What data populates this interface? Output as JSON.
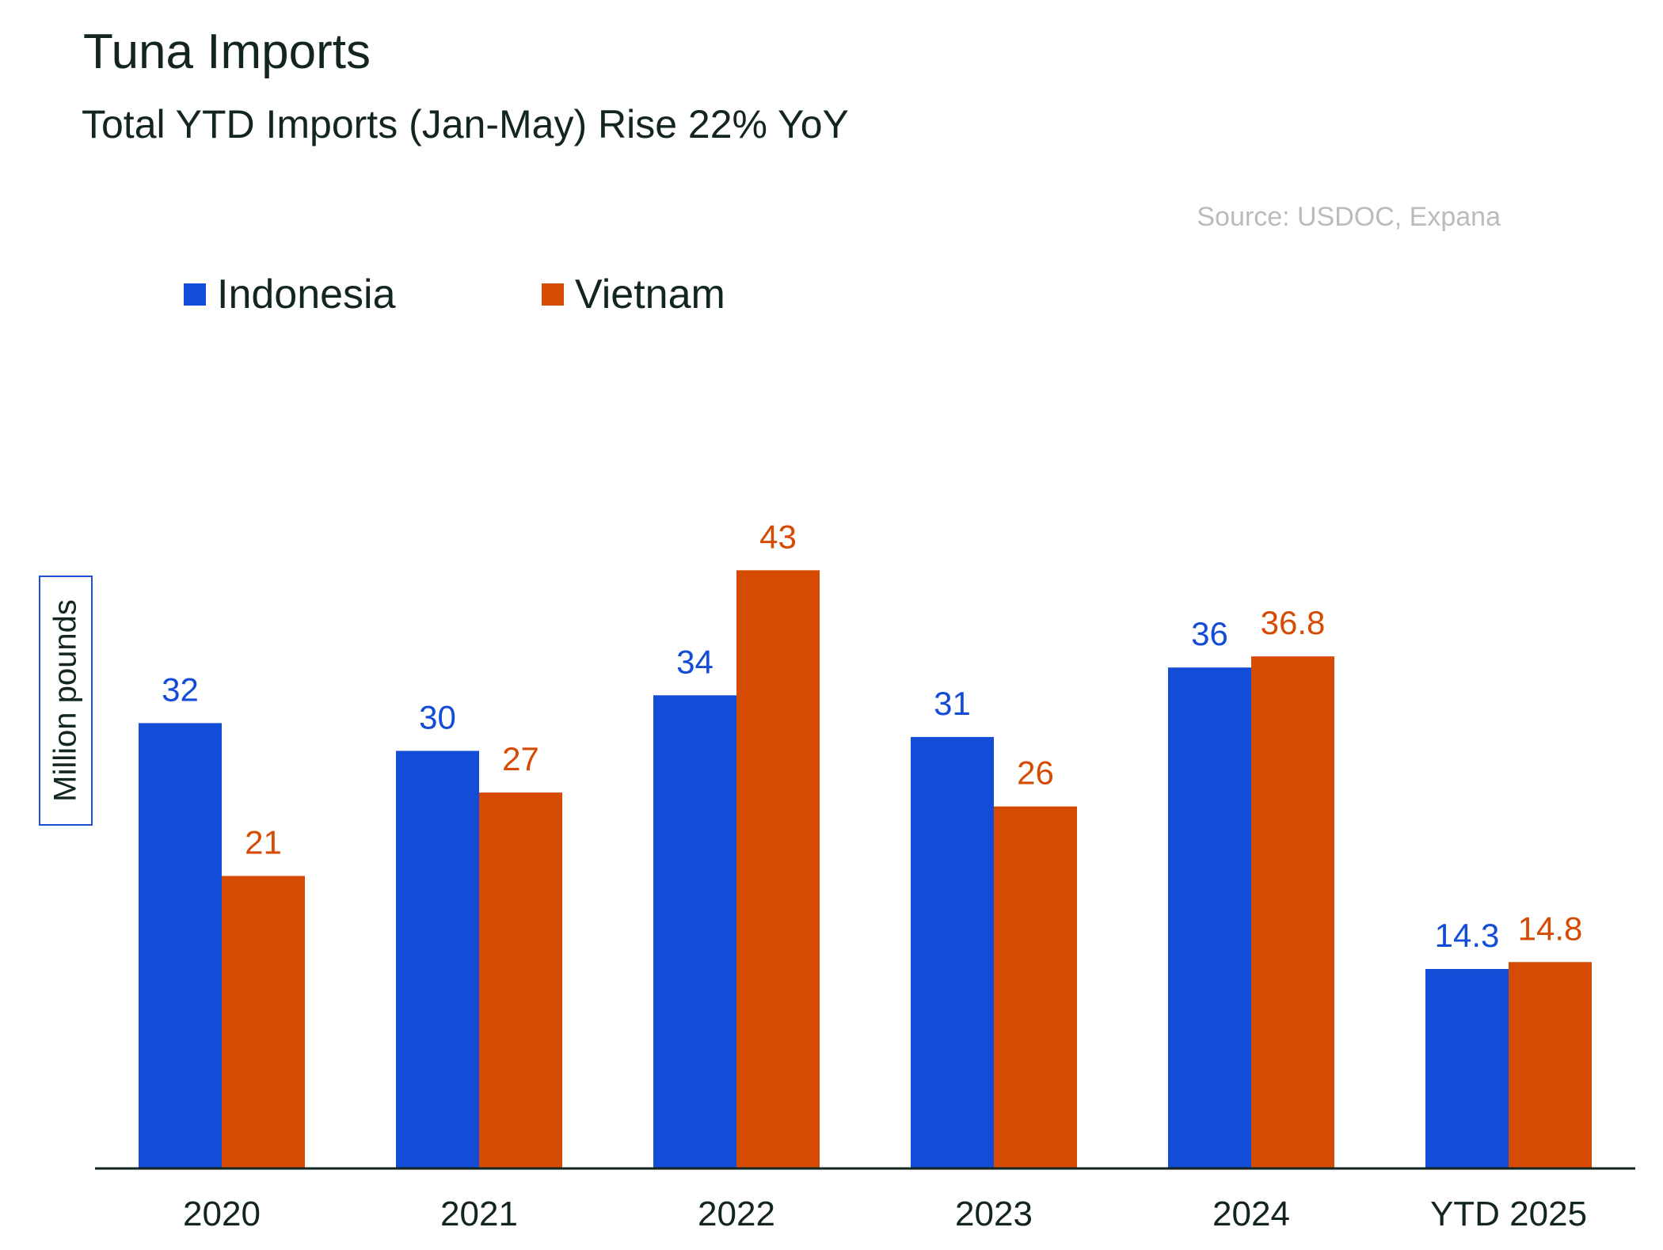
{
  "title": "Tuna Imports",
  "subtitle": "Total YTD Imports (Jan-May) Rise 22% YoY",
  "source": "Source: USDOC, Expana",
  "legend": {
    "indonesia": "Indonesia",
    "vietnam": "Vietnam"
  },
  "colors": {
    "indonesia": "#134cd6",
    "vietnam": "#d64b03",
    "axis": "#13251f",
    "source": "#b8bcbc"
  },
  "chart_data": {
    "type": "bar",
    "title": "Tuna Imports",
    "subtitle": "Total YTD Imports (Jan-May) Rise 22% YoY",
    "xlabel": "",
    "ylabel": "Million pounds",
    "ylim": [
      0,
      45
    ],
    "grid": false,
    "legend_position": "top-left",
    "categories": [
      "2020",
      "2021",
      "2022",
      "2023",
      "2024",
      "YTD 2025"
    ],
    "series": [
      {
        "name": "Indonesia",
        "values": [
          32,
          30,
          34,
          31,
          36,
          14.3
        ],
        "labels": [
          "32",
          "30",
          "34",
          "31",
          "36",
          "14.3"
        ]
      },
      {
        "name": "Vietnam",
        "values": [
          21,
          27,
          43,
          26,
          36.8,
          14.8
        ],
        "labels": [
          "21",
          "27",
          "43",
          "26",
          "36.8",
          "14.8"
        ]
      }
    ]
  }
}
